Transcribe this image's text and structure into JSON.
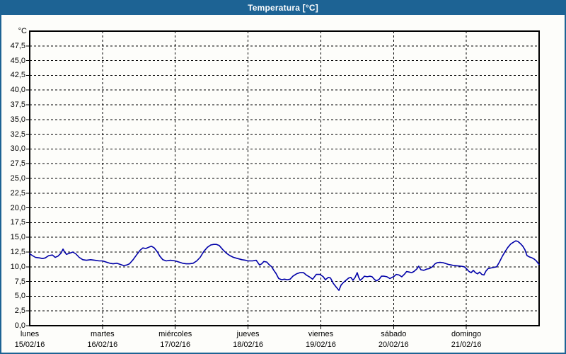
{
  "window": {
    "title": "Temperatura [°C]"
  },
  "colors": {
    "accent_blue": "#1d6394",
    "line_blue": "#0000a8",
    "background": "#fdfdfa",
    "grid_black": "#000000",
    "title_text": "#ffffff"
  },
  "chart_data": {
    "type": "line",
    "title": "Temperatura [°C]",
    "y_unit_label": "°C",
    "grid": "dashed",
    "legend": "none",
    "y_axis": {
      "min": 0,
      "max": 50,
      "tick_step": 2.5,
      "tick_labels": [
        "0,0",
        "2,5",
        "5,0",
        "7,5",
        "10,0",
        "12,5",
        "15,0",
        "17,5",
        "20,0",
        "22,5",
        "25,0",
        "27,5",
        "30,0",
        "32,5",
        "35,0",
        "37,5",
        "40,0",
        "42,5",
        "45,0",
        "47,5"
      ]
    },
    "x_axis": {
      "total_hours": 168,
      "hours_per_day": 24,
      "days": [
        {
          "name": "lunes",
          "date": "15/02/16"
        },
        {
          "name": "martes",
          "date": "16/02/16"
        },
        {
          "name": "miércoles",
          "date": "17/02/16"
        },
        {
          "name": "jueves",
          "date": "18/02/16"
        },
        {
          "name": "viernes",
          "date": "19/02/16"
        },
        {
          "name": "sábado",
          "date": "20/02/16"
        },
        {
          "name": "domingo",
          "date": "21/02/16"
        }
      ]
    },
    "series": [
      {
        "name": "Temperatura",
        "color": "#0000a8",
        "points": [
          [
            0,
            12.2
          ],
          [
            0.9,
            11.9
          ],
          [
            1.9,
            11.6
          ],
          [
            3.3,
            11.5
          ],
          [
            4.2,
            11.4
          ],
          [
            5.1,
            11.5
          ],
          [
            6.3,
            11.9
          ],
          [
            7.5,
            12.0
          ],
          [
            8.4,
            11.6
          ],
          [
            9.3,
            11.8
          ],
          [
            10.3,
            12.3
          ],
          [
            11.0,
            13.0
          ],
          [
            11.4,
            12.6
          ],
          [
            12.1,
            12.1
          ],
          [
            13.1,
            12.3
          ],
          [
            14.2,
            12.5
          ],
          [
            15.2,
            12.2
          ],
          [
            16.3,
            11.6
          ],
          [
            17.5,
            11.2
          ],
          [
            18.7,
            11.1
          ],
          [
            20.1,
            11.2
          ],
          [
            21.5,
            11.1
          ],
          [
            22.9,
            11.0
          ],
          [
            24.0,
            11.0
          ],
          [
            25.2,
            10.8
          ],
          [
            26.4,
            10.6
          ],
          [
            27.5,
            10.5
          ],
          [
            28.7,
            10.6
          ],
          [
            29.9,
            10.4
          ],
          [
            31.0,
            10.2
          ],
          [
            32.0,
            10.3
          ],
          [
            32.9,
            10.5
          ],
          [
            34.1,
            11.2
          ],
          [
            35.2,
            12.0
          ],
          [
            36.4,
            12.8
          ],
          [
            37.3,
            13.2
          ],
          [
            38.3,
            13.1
          ],
          [
            39.2,
            13.3
          ],
          [
            40.1,
            13.5
          ],
          [
            41.1,
            13.2
          ],
          [
            42.0,
            12.6
          ],
          [
            42.9,
            11.8
          ],
          [
            43.9,
            11.2
          ],
          [
            45.0,
            11.0
          ],
          [
            46.4,
            11.1
          ],
          [
            48.0,
            11.0
          ],
          [
            49.2,
            10.8
          ],
          [
            50.4,
            10.6
          ],
          [
            51.6,
            10.5
          ],
          [
            52.7,
            10.5
          ],
          [
            53.9,
            10.6
          ],
          [
            55.1,
            11.0
          ],
          [
            56.2,
            11.6
          ],
          [
            57.4,
            12.6
          ],
          [
            58.6,
            13.3
          ],
          [
            59.7,
            13.7
          ],
          [
            60.7,
            13.8
          ],
          [
            61.6,
            13.8
          ],
          [
            62.5,
            13.6
          ],
          [
            63.7,
            12.9
          ],
          [
            64.9,
            12.3
          ],
          [
            66.0,
            11.9
          ],
          [
            67.2,
            11.6
          ],
          [
            68.6,
            11.4
          ],
          [
            70.0,
            11.2
          ],
          [
            71.2,
            11.1
          ],
          [
            72.0,
            11.0
          ],
          [
            73.5,
            11.0
          ],
          [
            74.7,
            11.1
          ],
          [
            75.8,
            10.3
          ],
          [
            76.5,
            10.5
          ],
          [
            77.2,
            10.9
          ],
          [
            78.2,
            10.8
          ],
          [
            78.9,
            10.4
          ],
          [
            79.8,
            10.0
          ],
          [
            80.5,
            9.4
          ],
          [
            81.2,
            8.9
          ],
          [
            82.1,
            8.0
          ],
          [
            83.1,
            7.8
          ],
          [
            84.0,
            7.9
          ],
          [
            84.9,
            7.8
          ],
          [
            85.9,
            7.9
          ],
          [
            86.8,
            8.4
          ],
          [
            88.0,
            8.8
          ],
          [
            89.1,
            9.0
          ],
          [
            90.3,
            9.0
          ],
          [
            91.2,
            8.6
          ],
          [
            92.2,
            8.3
          ],
          [
            93.3,
            7.9
          ],
          [
            94.5,
            8.7
          ],
          [
            95.7,
            8.7
          ],
          [
            96.0,
            8.6
          ],
          [
            96.8,
            8.3
          ],
          [
            97.5,
            7.8
          ],
          [
            98.5,
            8.2
          ],
          [
            99.2,
            8.1
          ],
          [
            100.1,
            7.2
          ],
          [
            101.0,
            6.6
          ],
          [
            102.0,
            6.0
          ],
          [
            102.7,
            6.9
          ],
          [
            103.4,
            7.3
          ],
          [
            104.3,
            7.7
          ],
          [
            105.2,
            8.1
          ],
          [
            105.9,
            8.2
          ],
          [
            106.6,
            7.7
          ],
          [
            107.3,
            8.2
          ],
          [
            108.0,
            9.0
          ],
          [
            108.5,
            8.2
          ],
          [
            109.0,
            7.7
          ],
          [
            109.7,
            8.0
          ],
          [
            110.4,
            8.4
          ],
          [
            111.3,
            8.3
          ],
          [
            112.2,
            8.4
          ],
          [
            112.9,
            8.3
          ],
          [
            113.6,
            7.9
          ],
          [
            114.3,
            7.6
          ],
          [
            115.3,
            7.9
          ],
          [
            116.0,
            8.4
          ],
          [
            116.9,
            8.4
          ],
          [
            117.8,
            8.3
          ],
          [
            118.8,
            8.0
          ],
          [
            119.5,
            8.2
          ],
          [
            120.0,
            8.3
          ],
          [
            120.9,
            8.7
          ],
          [
            121.8,
            8.6
          ],
          [
            122.7,
            8.3
          ],
          [
            123.7,
            8.8
          ],
          [
            124.3,
            9.2
          ],
          [
            125.2,
            9.1
          ],
          [
            126.0,
            9.0
          ],
          [
            126.7,
            9.2
          ],
          [
            127.6,
            9.6
          ],
          [
            128.3,
            10.1
          ],
          [
            129.0,
            9.5
          ],
          [
            130.0,
            9.4
          ],
          [
            130.9,
            9.6
          ],
          [
            131.8,
            9.7
          ],
          [
            132.8,
            10.0
          ],
          [
            133.7,
            10.5
          ],
          [
            134.4,
            10.7
          ],
          [
            135.3,
            10.75
          ],
          [
            136.3,
            10.7
          ],
          [
            137.2,
            10.55
          ],
          [
            138.1,
            10.4
          ],
          [
            139.1,
            10.3
          ],
          [
            140.0,
            10.2
          ],
          [
            141.2,
            10.15
          ],
          [
            142.3,
            10.1
          ],
          [
            143.3,
            10.0
          ],
          [
            144.0,
            9.7
          ],
          [
            144.9,
            9.2
          ],
          [
            145.6,
            9.0
          ],
          [
            146.3,
            9.4
          ],
          [
            147.0,
            9.0
          ],
          [
            147.7,
            8.8
          ],
          [
            148.4,
            9.1
          ],
          [
            149.1,
            8.7
          ],
          [
            149.8,
            8.6
          ],
          [
            150.5,
            9.3
          ],
          [
            151.2,
            9.7
          ],
          [
            152.1,
            9.8
          ],
          [
            153.1,
            9.9
          ],
          [
            154.0,
            10.0
          ],
          [
            154.9,
            10.8
          ],
          [
            155.9,
            11.8
          ],
          [
            156.8,
            12.6
          ],
          [
            157.7,
            13.3
          ],
          [
            158.7,
            13.9
          ],
          [
            159.6,
            14.2
          ],
          [
            160.3,
            14.4
          ],
          [
            161.0,
            14.3
          ],
          [
            161.9,
            13.9
          ],
          [
            162.6,
            13.5
          ],
          [
            163.3,
            12.9
          ],
          [
            164.0,
            11.9
          ],
          [
            164.7,
            11.7
          ],
          [
            165.7,
            11.5
          ],
          [
            166.4,
            11.3
          ],
          [
            167.1,
            11.0
          ],
          [
            167.5,
            10.7
          ],
          [
            168.0,
            10.4
          ]
        ]
      }
    ]
  }
}
